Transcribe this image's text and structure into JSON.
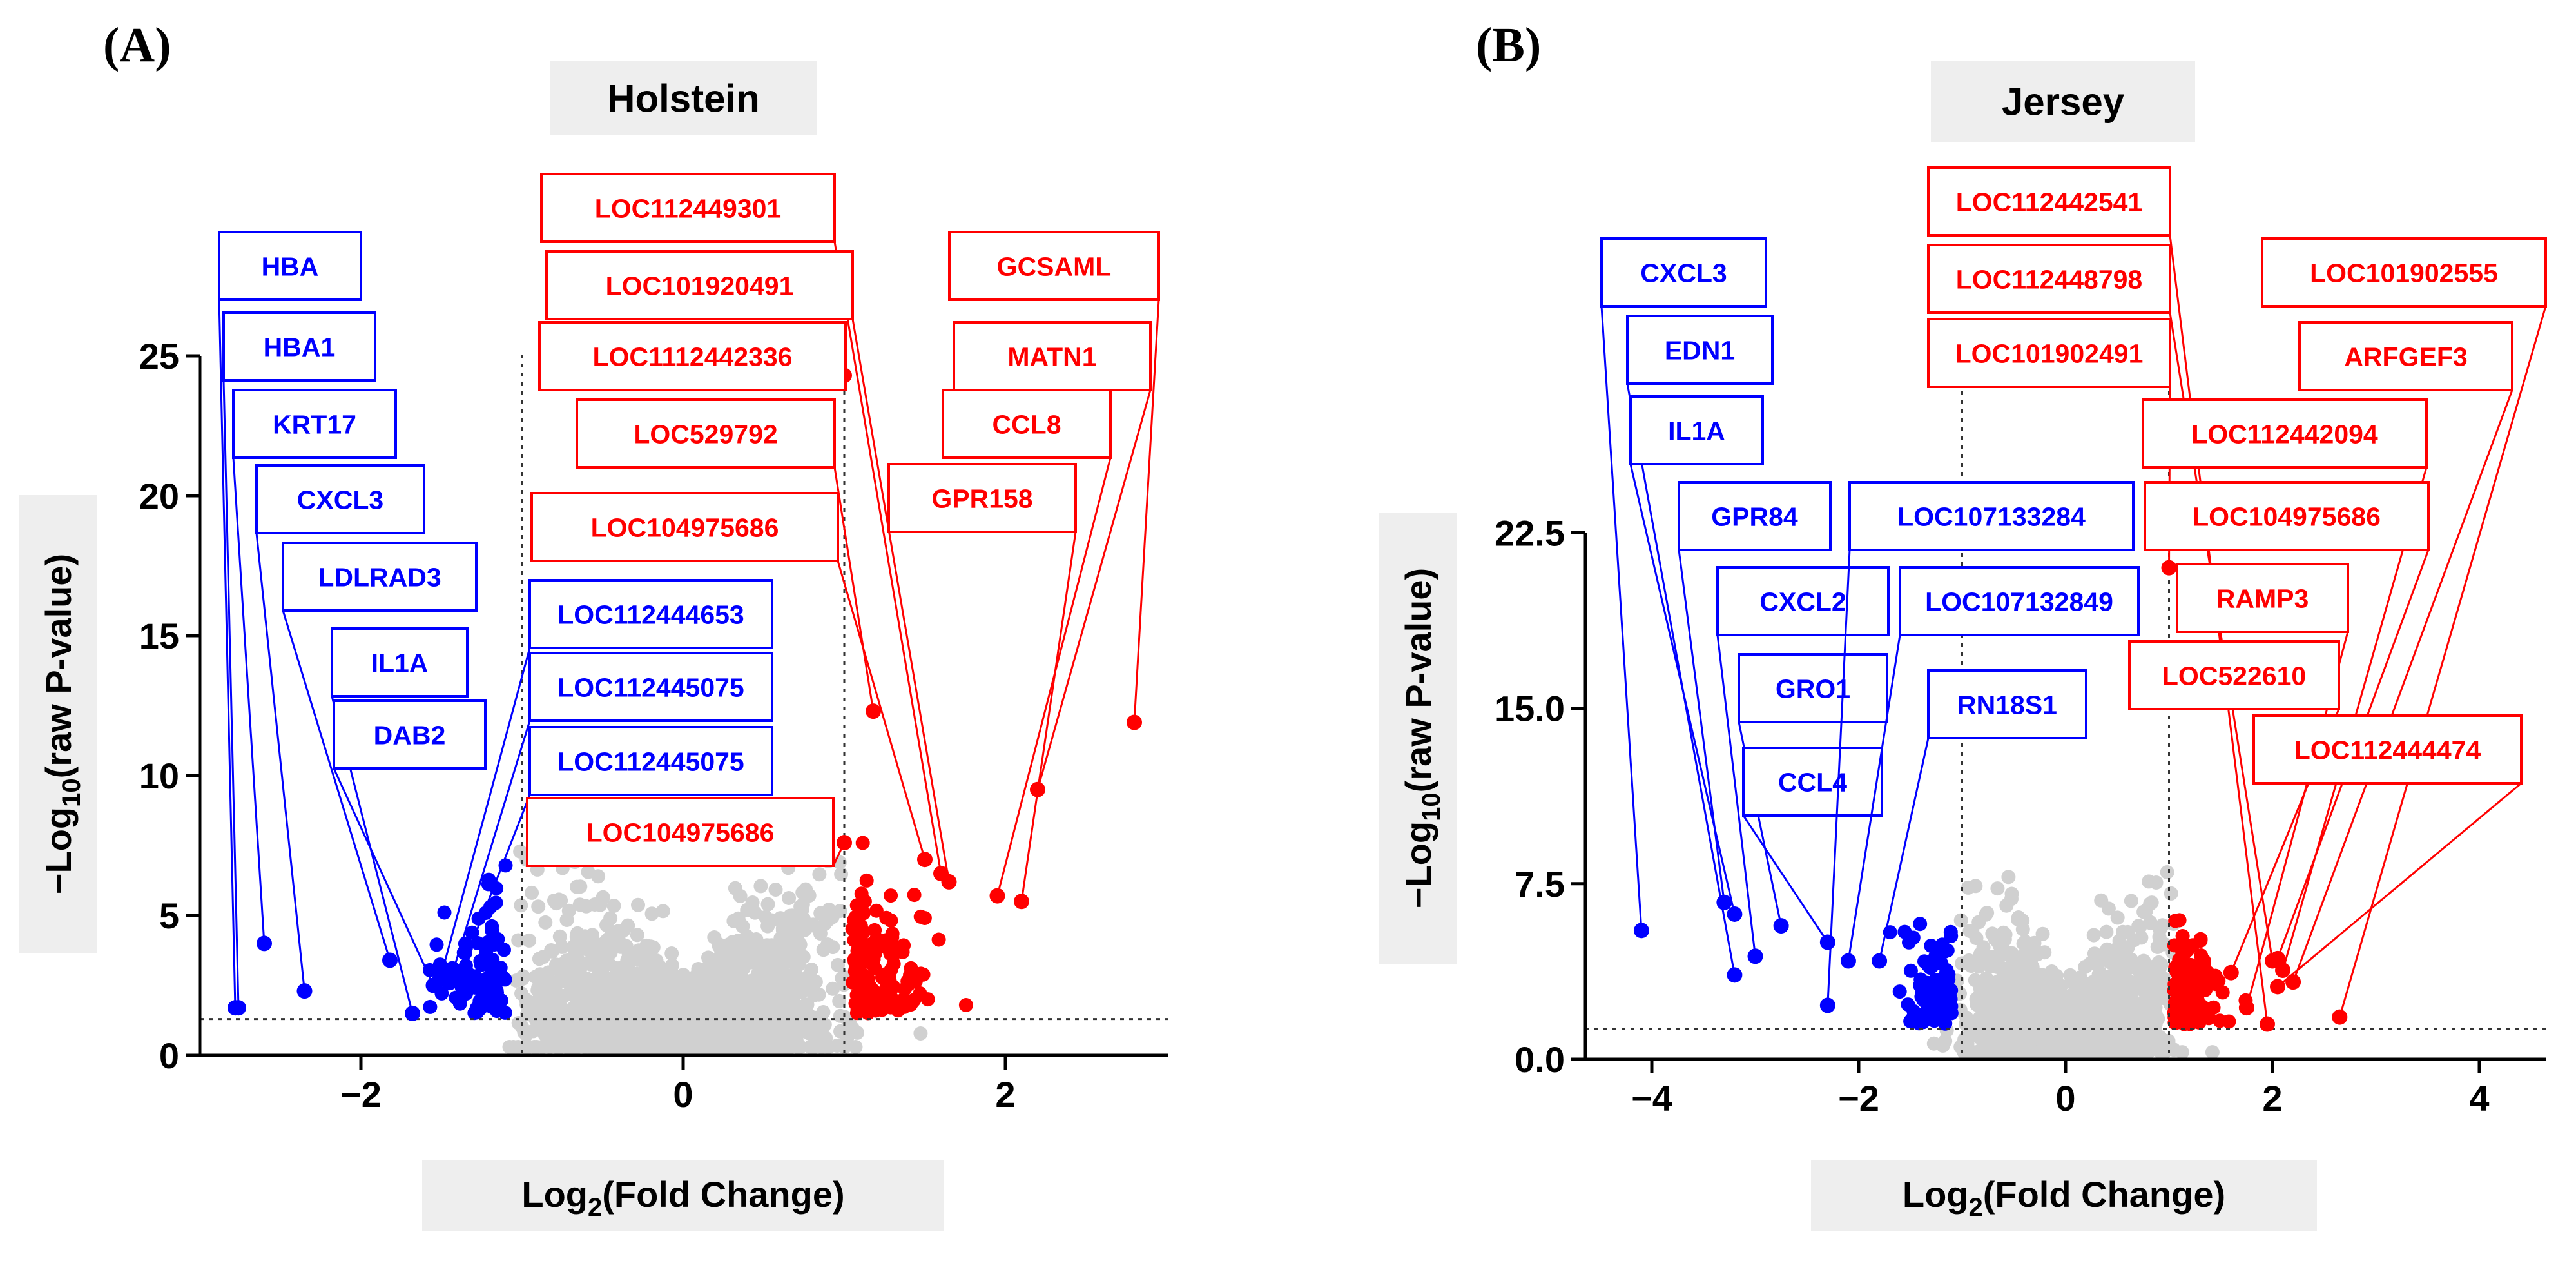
{
  "chart_data": [
    {
      "type": "scatter",
      "subtype": "volcano",
      "panel": "(A)",
      "title": "Holstein",
      "xlabel": "Log2(Fold Change)",
      "ylabel": "−Log10(raw P-value)",
      "xlim": [
        -3.0,
        3.0
      ],
      "ylim": [
        0,
        25
      ],
      "xticks": [
        -2,
        0,
        2
      ],
      "xtick_labels": [
        "−2",
        "0",
        "2"
      ],
      "yticks": [
        0,
        5,
        10,
        15,
        20,
        25
      ],
      "ytick_labels": [
        "0",
        "5",
        "10",
        "15",
        "20",
        "25"
      ],
      "fc_threshold": 1,
      "p_threshold": 1.3,
      "down_color": "#0000ff",
      "up_color": "#ff0000",
      "ns_color": "#d0d0d0",
      "labeled_points": [
        {
          "label": "HBA",
          "x": -2.78,
          "y": 1.7,
          "group": "down"
        },
        {
          "label": "HBA1",
          "x": -2.76,
          "y": 1.7,
          "group": "down"
        },
        {
          "label": "KRT17",
          "x": -2.6,
          "y": 4.0,
          "group": "down"
        },
        {
          "label": "CXCL3",
          "x": -2.35,
          "y": 2.3,
          "group": "down"
        },
        {
          "label": "LDLRAD3",
          "x": -1.82,
          "y": 3.4,
          "group": "down"
        },
        {
          "label": "IL1A",
          "x": -1.68,
          "y": 1.5,
          "group": "down"
        },
        {
          "label": "DAB2",
          "x": -1.55,
          "y": 2.5,
          "group": "down"
        },
        {
          "label": "LOC112444653",
          "x": -1.5,
          "y": 2.9,
          "group": "down"
        },
        {
          "label": "LOC112445075",
          "x": -1.45,
          "y": 2.6,
          "group": "down"
        },
        {
          "label": "LOC112445075",
          "x": -1.4,
          "y": 2.7,
          "group": "down"
        },
        {
          "label": "LOC112449301",
          "x": 1.6,
          "y": 6.5,
          "group": "up"
        },
        {
          "label": "LOC101920491",
          "x": 1.65,
          "y": 6.2,
          "group": "up"
        },
        {
          "label": "LOC1112442336",
          "x": 1.0,
          "y": 24.3,
          "group": "up"
        },
        {
          "label": "LOC529792",
          "x": 1.18,
          "y": 12.3,
          "group": "up"
        },
        {
          "label": "LOC104975686",
          "x": 1.5,
          "y": 7.0,
          "group": "up"
        },
        {
          "label": "LOC104975686",
          "x": 1.0,
          "y": 7.6,
          "group": "up"
        },
        {
          "label": "GCSAML",
          "x": 2.8,
          "y": 11.9,
          "group": "up"
        },
        {
          "label": "MATN1",
          "x": 2.2,
          "y": 9.5,
          "group": "up"
        },
        {
          "label": "CCL8",
          "x": 1.95,
          "y": 5.7,
          "group": "up"
        },
        {
          "label": "GPR158",
          "x": 2.1,
          "y": 5.5,
          "group": "up"
        }
      ]
    },
    {
      "type": "scatter",
      "subtype": "volcano",
      "panel": "(B)",
      "title": "Jersey",
      "xlabel": "Log2(Fold Change)",
      "ylabel": "−Log10(raw P-value)",
      "xlim": [
        -4.5,
        4.5
      ],
      "ylim": [
        0,
        22.5
      ],
      "xticks": [
        -4,
        -2,
        0,
        2,
        4
      ],
      "xtick_labels": [
        "−4",
        "−2",
        "0",
        "2",
        "4"
      ],
      "yticks": [
        0,
        7.5,
        15,
        22.5
      ],
      "ytick_labels": [
        "0.0",
        "7.5",
        "15.0",
        "22.5"
      ],
      "fc_threshold": 1,
      "p_threshold": 1.3,
      "down_color": "#0000ff",
      "up_color": "#ff0000",
      "ns_color": "#d0d0d0",
      "labeled_points": [
        {
          "label": "CXCL3",
          "x": -4.1,
          "y": 5.5,
          "group": "down"
        },
        {
          "label": "EDN1",
          "x": -3.2,
          "y": 3.6,
          "group": "down"
        },
        {
          "label": "IL1A",
          "x": -3.2,
          "y": 6.2,
          "group": "down"
        },
        {
          "label": "GPR84",
          "x": -3.3,
          "y": 6.7,
          "group": "down"
        },
        {
          "label": "CXCL2",
          "x": -3.0,
          "y": 4.4,
          "group": "down"
        },
        {
          "label": "GRO1",
          "x": -2.75,
          "y": 5.7,
          "group": "down"
        },
        {
          "label": "CCL4",
          "x": -2.3,
          "y": 5.0,
          "group": "down"
        },
        {
          "label": "LOC107133284",
          "x": -2.3,
          "y": 2.3,
          "group": "down"
        },
        {
          "label": "LOC107132849",
          "x": -2.1,
          "y": 4.2,
          "group": "down"
        },
        {
          "label": "RN18S1",
          "x": -1.8,
          "y": 4.2,
          "group": "down"
        },
        {
          "label": "LOC112442541",
          "x": 1.95,
          "y": 1.5,
          "group": "up"
        },
        {
          "label": "LOC112448798",
          "x": 2.0,
          "y": 4.2,
          "group": "up"
        },
        {
          "label": "LOC101902491",
          "x": 1.0,
          "y": 21.0,
          "group": "up"
        },
        {
          "label": "LOC101902555",
          "x": 2.65,
          "y": 1.8,
          "group": "up"
        },
        {
          "label": "ARFGEF3",
          "x": 2.2,
          "y": 3.3,
          "group": "up"
        },
        {
          "label": "LOC112442094",
          "x": 2.1,
          "y": 3.8,
          "group": "up"
        },
        {
          "label": "LOC104975686",
          "x": 2.05,
          "y": 4.3,
          "group": "up"
        },
        {
          "label": "RAMP3",
          "x": 1.75,
          "y": 2.2,
          "group": "up"
        },
        {
          "label": "LOC522610",
          "x": 1.6,
          "y": 3.7,
          "group": "up"
        },
        {
          "label": "LOC112444474",
          "x": 2.05,
          "y": 3.1,
          "group": "up"
        }
      ]
    }
  ]
}
